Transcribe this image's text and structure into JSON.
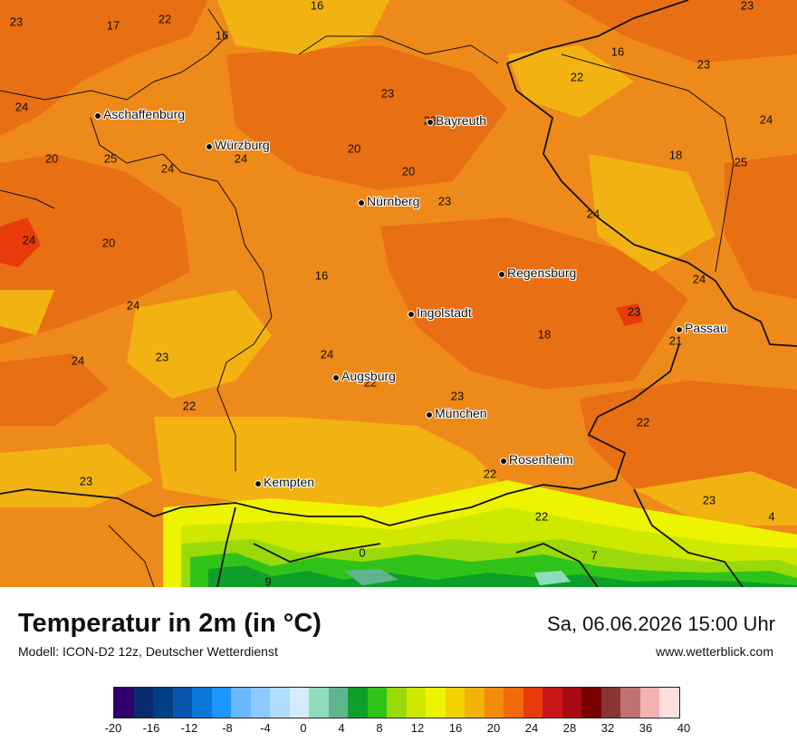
{
  "title": "Temperatur in 2m (in °C)",
  "model": "Modell: ICON-D2 12z, Deutscher Wetterdienst",
  "datetime": "Sa, 06.06.2026 15:00 Uhr",
  "website": "www.wetterblick.com",
  "cities": [
    "Aschaffenburg",
    "Würzburg",
    "Bayreuth",
    "Nürnberg",
    "Regensburg",
    "Ingolstadt",
    "Passau",
    "Augsburg",
    "München",
    "Rosenheim",
    "Kempten"
  ],
  "map_values": [
    "23",
    "17",
    "22",
    "16",
    "16",
    "23",
    "16",
    "23",
    "22",
    "23",
    "24",
    "23",
    "24",
    "20",
    "25",
    "24",
    "24",
    "20",
    "20",
    "23",
    "18",
    "25",
    "24",
    "20",
    "24",
    "16",
    "24",
    "24",
    "23",
    "24",
    "18",
    "21",
    "23",
    "22",
    "24",
    "22",
    "23",
    "22",
    "23",
    "22",
    "23",
    "22",
    "4",
    "0",
    "7",
    "9"
  ],
  "legend": {
    "colors": [
      "#2f006b",
      "#0a2a6e",
      "#003f84",
      "#0a57ad",
      "#0a78db",
      "#1e96ff",
      "#6ab8ff",
      "#8ccaff",
      "#b0dcff",
      "#d4ecff",
      "#8edcbc",
      "#5fb48e",
      "#0e9e2a",
      "#2fc31a",
      "#9ada0a",
      "#cfe800",
      "#eef400",
      "#f2d200",
      "#f2b20a",
      "#f28c0a",
      "#f26a0a",
      "#e83a0a",
      "#c8161a",
      "#a80a14",
      "#7a0000",
      "#8a3434",
      "#c07272",
      "#f2b2b2",
      "#ffdede"
    ],
    "ticks": [
      "-20",
      "-16",
      "-12",
      "-8",
      "-4",
      "0",
      "4",
      "8",
      "12",
      "16",
      "20",
      "24",
      "28",
      "32",
      "36",
      "40"
    ]
  },
  "colors": {
    "map_base": "#ee8a1a",
    "warm_red_orange": "#e96f14",
    "cool_yellow_orange": "#f2b312",
    "alpine_green": "#2fc31a"
  }
}
